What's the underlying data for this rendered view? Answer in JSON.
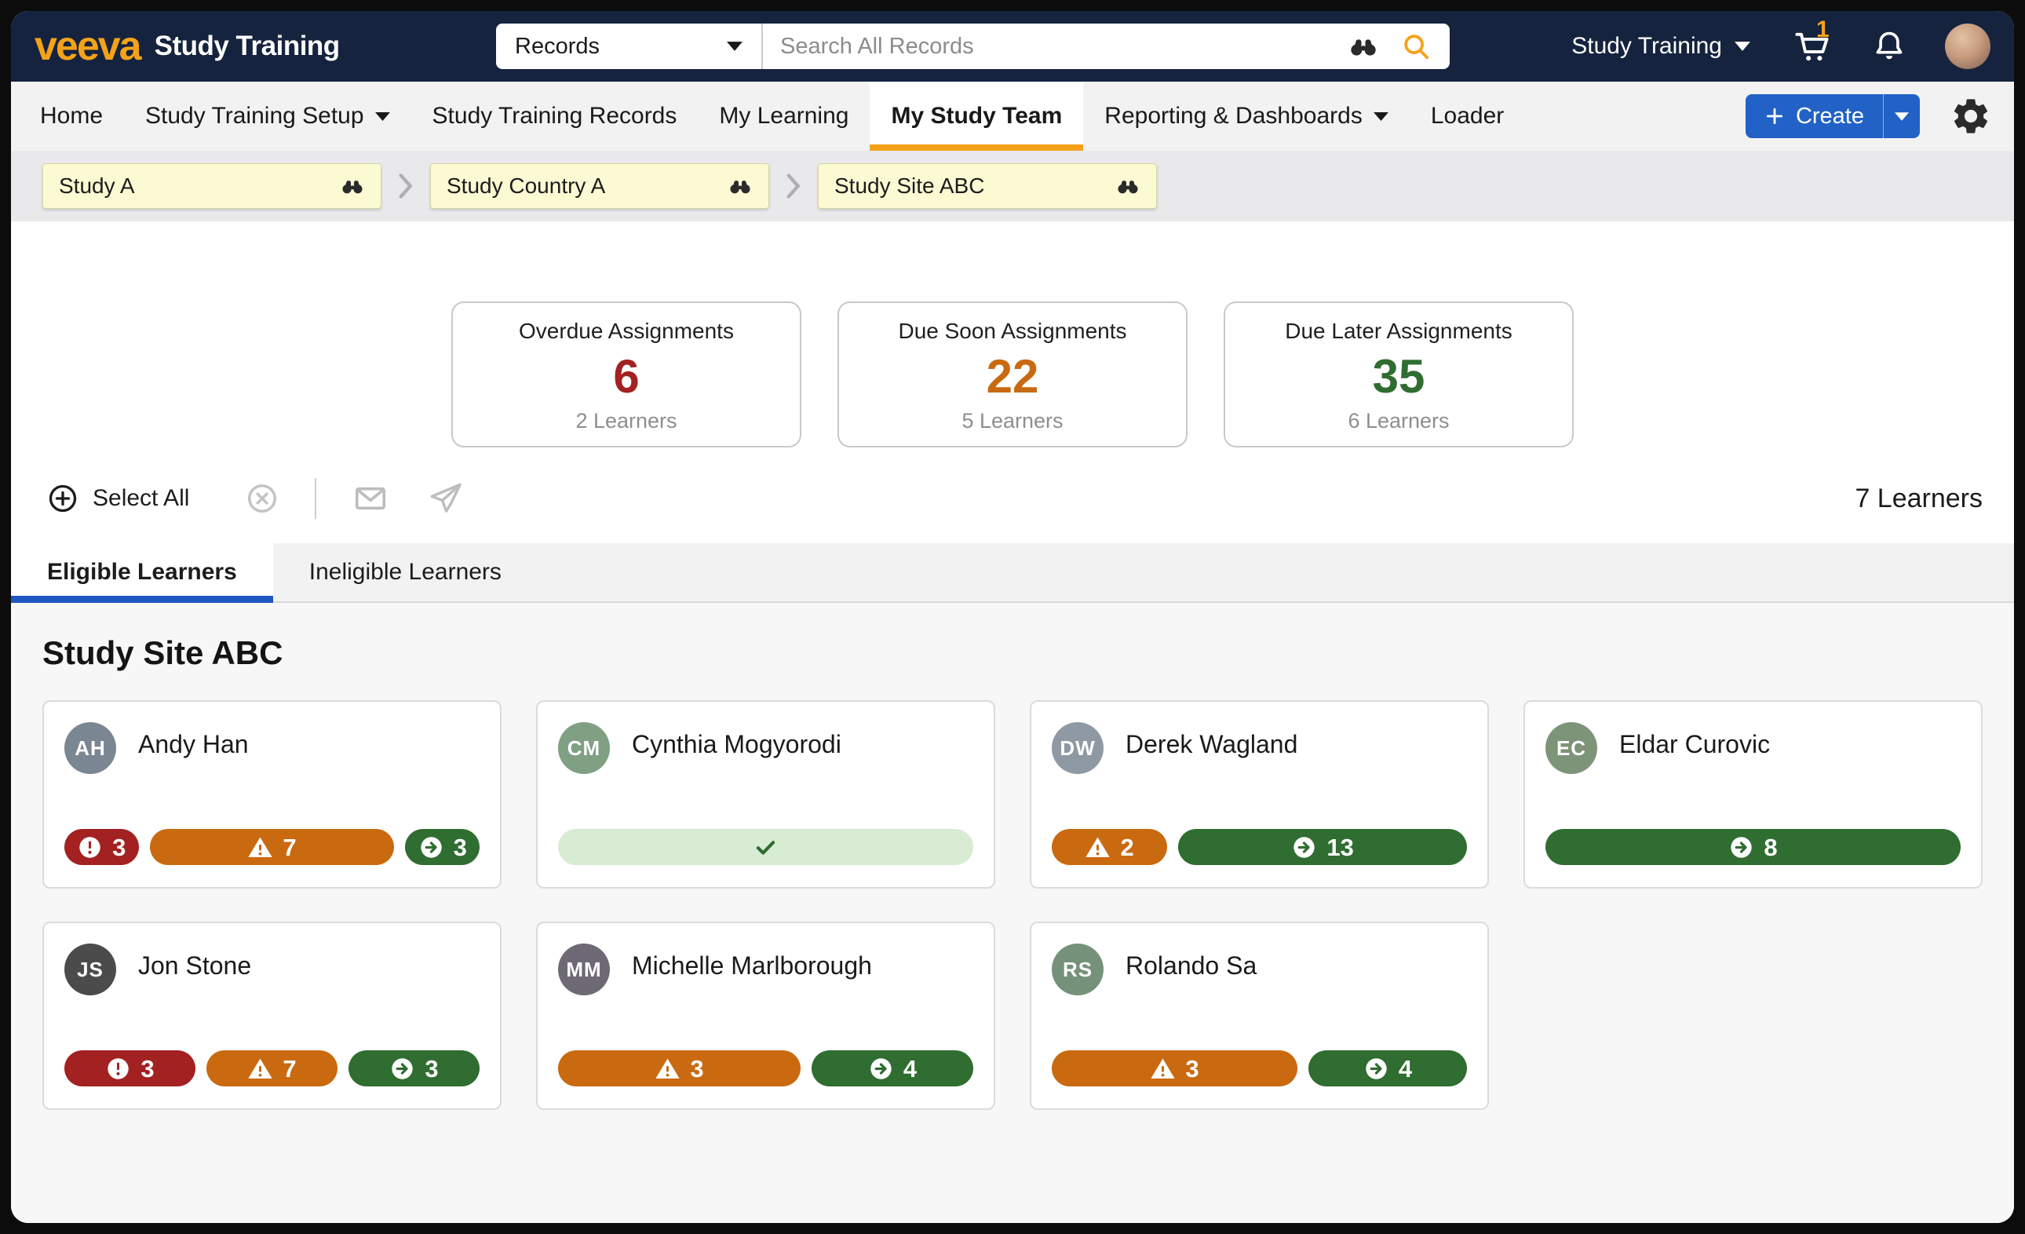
{
  "header": {
    "logo_text": "veeva",
    "app_title": "Study Training",
    "search": {
      "scope": "Records",
      "placeholder": "Search All Records"
    },
    "org_label": "Study Training",
    "cart_count": "1"
  },
  "nav": {
    "tabs": [
      {
        "label": "Home",
        "caret": false,
        "active": false
      },
      {
        "label": "Study Training Setup",
        "caret": true,
        "active": false
      },
      {
        "label": "Study Training Records",
        "caret": false,
        "active": false
      },
      {
        "label": "My Learning",
        "caret": false,
        "active": false
      },
      {
        "label": "My Study Team",
        "caret": false,
        "active": true
      },
      {
        "label": "Reporting & Dashboards",
        "caret": true,
        "active": false
      },
      {
        "label": "Loader",
        "caret": false,
        "active": false
      }
    ],
    "create_label": "Create"
  },
  "breadcrumb": [
    "Study A",
    "Study Country A",
    "Study Site ABC"
  ],
  "stats": [
    {
      "title": "Overdue Assignments",
      "value": "6",
      "color": "#A32121",
      "subtitle": "2 Learners"
    },
    {
      "title": "Due Soon Assignments",
      "value": "22",
      "color": "#C96A10",
      "subtitle": "5 Learners"
    },
    {
      "title": "Due Later Assignments",
      "value": "35",
      "color": "#2F6D31",
      "subtitle": "6 Learners"
    }
  ],
  "toolbar": {
    "select_all_label": "Select All",
    "learner_count": "7 Learners"
  },
  "learner_tabs": {
    "eligible": "Eligible Learners",
    "ineligible": "Ineligible Learners"
  },
  "section_title": "Study Site ABC",
  "learners": [
    {
      "name": "Andy Han",
      "initials": "AH",
      "avatar_color": "#7A8691",
      "badges": [
        {
          "type": "overdue",
          "count": "3",
          "flex": 1
        },
        {
          "type": "due-soon",
          "count": "7",
          "flex": 3.3
        },
        {
          "type": "due-later",
          "count": "3",
          "flex": 1
        }
      ]
    },
    {
      "name": "Cynthia Mogyorodi",
      "initials": "CM",
      "avatar_color": "#7FA083",
      "badges": [
        {
          "type": "complete",
          "count": "",
          "flex": 1
        }
      ]
    },
    {
      "name": "Derek Wagland",
      "initials": "DW",
      "avatar_color": "#8E99A3",
      "badges": [
        {
          "type": "due-soon",
          "count": "2",
          "flex": 1
        },
        {
          "type": "due-later",
          "count": "13",
          "flex": 2.5
        }
      ]
    },
    {
      "name": "Eldar Curovic",
      "initials": "EC",
      "avatar_color": "#7E9478",
      "badges": [
        {
          "type": "due-later",
          "count": "8",
          "flex": 1
        }
      ]
    },
    {
      "name": "Jon Stone",
      "initials": "JS",
      "avatar_color": "#4B4B4B",
      "badges": [
        {
          "type": "overdue",
          "count": "3",
          "flex": 1
        },
        {
          "type": "due-soon",
          "count": "7",
          "flex": 1
        },
        {
          "type": "due-later",
          "count": "3",
          "flex": 1
        }
      ]
    },
    {
      "name": "Michelle Marlborough",
      "initials": "MM",
      "avatar_color": "#6E6A75",
      "badges": [
        {
          "type": "due-soon",
          "count": "3",
          "flex": 1.5
        },
        {
          "type": "due-later",
          "count": "4",
          "flex": 1
        }
      ]
    },
    {
      "name": "Rolando Sa",
      "initials": "RS",
      "avatar_color": "#76917A",
      "badges": [
        {
          "type": "due-soon",
          "count": "3",
          "flex": 1.55
        },
        {
          "type": "due-later",
          "count": "4",
          "flex": 1
        }
      ]
    }
  ],
  "colors": {
    "overdue": "#A32121",
    "due-soon": "#C96A10",
    "due-later": "#2F6D31",
    "complete-bg": "#D8ECD4",
    "complete-check": "#2E6B2E",
    "accent_orange": "#F5A21B",
    "primary_blue": "#2262C6",
    "navy": "#15233E"
  }
}
